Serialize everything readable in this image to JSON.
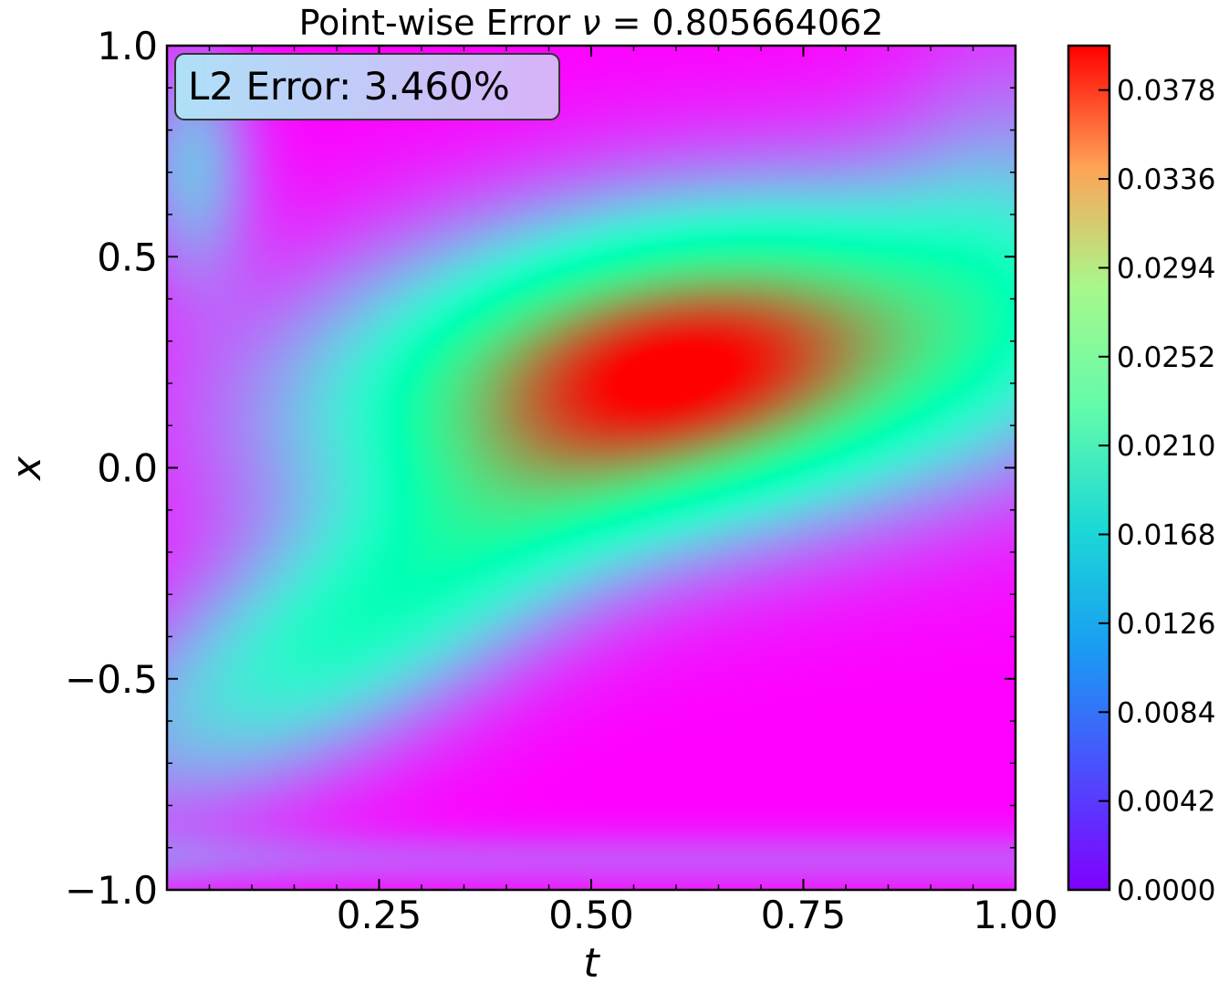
{
  "chart_data": {
    "type": "heatmap",
    "title_text": "Point-wise Error ",
    "title_symbol": "ν",
    "title_value": " = 0.805664062",
    "xlabel": "t",
    "ylabel": "x",
    "xlim": [
      0.0,
      1.0
    ],
    "ylim": [
      -1.0,
      1.0
    ],
    "x_ticks": [
      {
        "value": 0.25,
        "label": "0.25"
      },
      {
        "value": 0.5,
        "label": "0.50"
      },
      {
        "value": 0.75,
        "label": "0.75"
      },
      {
        "value": 1.0,
        "label": "1.00"
      }
    ],
    "y_ticks": [
      {
        "value": 1.0,
        "label": "1.0"
      },
      {
        "value": 0.5,
        "label": "0.5"
      },
      {
        "value": 0.0,
        "label": "0.0"
      },
      {
        "value": -0.5,
        "label": "−0.5"
      },
      {
        "value": -1.0,
        "label": "−1.0"
      }
    ],
    "annotation": "L2 Error: 3.460%",
    "colormap": "rainbow",
    "colorbar": {
      "min": 0.0,
      "max": 0.0399,
      "ticks": [
        {
          "value": 0.0,
          "label": "0.0000"
        },
        {
          "value": 0.0042,
          "label": "0.0042"
        },
        {
          "value": 0.0084,
          "label": "0.0084"
        },
        {
          "value": 0.0126,
          "label": "0.0126"
        },
        {
          "value": 0.0168,
          "label": "0.0168"
        },
        {
          "value": 0.021,
          "label": "0.0210"
        },
        {
          "value": 0.0252,
          "label": "0.0252"
        },
        {
          "value": 0.0294,
          "label": "0.0294"
        },
        {
          "value": 0.0336,
          "label": "0.0336"
        },
        {
          "value": 0.0378,
          "label": "0.0378"
        }
      ]
    },
    "error_field_approx": {
      "peak": {
        "t": 0.63,
        "x": 0.27,
        "value": 0.0395
      },
      "description_points": [
        {
          "t": 0.5,
          "x": 0.0,
          "value": 0.03
        },
        {
          "t": 0.3,
          "x": -0.2,
          "value": 0.022
        },
        {
          "t": 0.1,
          "x": -0.5,
          "value": 0.014
        },
        {
          "t": 0.9,
          "x": -0.8,
          "value": 0.001
        },
        {
          "t": 0.6,
          "x": 0.9,
          "value": 0.004
        },
        {
          "t": 0.02,
          "x": 0.75,
          "value": 0.011
        }
      ]
    },
    "grid": false,
    "colorbar_placement": "right"
  },
  "colors": {
    "annotation_box_left": "#aee0f7",
    "annotation_box_right": "#d8b2f8"
  }
}
